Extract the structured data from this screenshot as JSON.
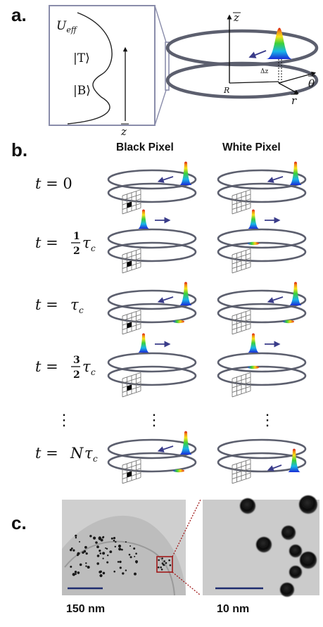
{
  "panel_a": {
    "label": "a.",
    "ueff_symbol": "U",
    "ueff_sub": "eff",
    "top_state": "|T⟩",
    "bottom_state": "|B⟩",
    "z_axis": "z",
    "radius_symbol": "R",
    "delta_symbol": "Δz",
    "theta_symbol": "θ",
    "r_symbol": "r"
  },
  "panel_b": {
    "label": "b.",
    "col_black": "Black Pixel",
    "col_white": "White Pixel",
    "rows": [
      {
        "t": "t = 0"
      },
      {
        "t": "t = ½ τc"
      },
      {
        "t": "t = τc"
      },
      {
        "t": "t = 3/2 τc"
      },
      {
        "t": "⋮"
      },
      {
        "t": "t = N τc"
      }
    ],
    "time_eq_lhs": "t =",
    "zero": "0",
    "half_num": "1",
    "half_den": "2",
    "three_halves_num": "3",
    "three_halves_den": "2",
    "tau": "τ",
    "tau_sub": "c",
    "N": "N",
    "vdots": "⋮"
  },
  "panel_c": {
    "label": "c.",
    "scale_left": "150 nm",
    "scale_right": "10 nm"
  },
  "colors": {
    "ring": "#5c5f6e",
    "arrow": "#3a3c8a",
    "zoom_frame": "#8a8dab",
    "scale_bar": "#1e2c6e",
    "inset_box": "#a01818"
  }
}
